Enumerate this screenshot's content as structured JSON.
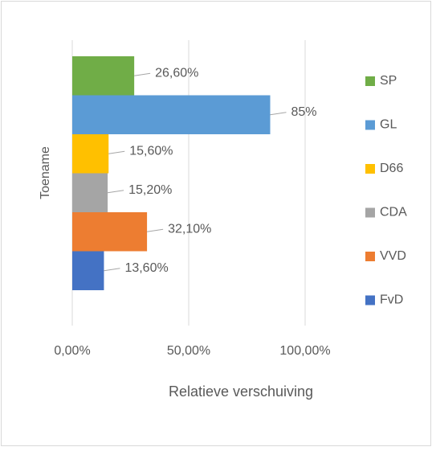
{
  "chart_data": {
    "type": "bar",
    "orientation": "horizontal",
    "categories": [
      "Toename"
    ],
    "xlabel": "Relatieve verschuiving",
    "series": [
      {
        "name": "SP",
        "color": "#70ad47",
        "values": [
          26.6
        ],
        "value_labels": [
          "26,60%"
        ]
      },
      {
        "name": "GL",
        "color": "#5b9bd5",
        "values": [
          85
        ],
        "value_labels": [
          "85%"
        ]
      },
      {
        "name": "D66",
        "color": "#ffc000",
        "values": [
          15.6
        ],
        "value_labels": [
          "15,60%"
        ]
      },
      {
        "name": "CDA",
        "color": "#a5a5a5",
        "values": [
          15.2
        ],
        "value_labels": [
          "15,20%"
        ]
      },
      {
        "name": "VVD",
        "color": "#ed7d31",
        "values": [
          32.1
        ],
        "value_labels": [
          "32,10%"
        ]
      },
      {
        "name": "FvD",
        "color": "#4472c4",
        "values": [
          13.6
        ],
        "value_labels": [
          "13,60%"
        ]
      }
    ],
    "xlim": [
      0,
      100
    ],
    "xticks": [
      {
        "value": 0,
        "label": "0,00%"
      },
      {
        "value": 50,
        "label": "50,00%"
      },
      {
        "value": 100,
        "label": "100,00%"
      }
    ],
    "grid": true,
    "legend": "right"
  }
}
